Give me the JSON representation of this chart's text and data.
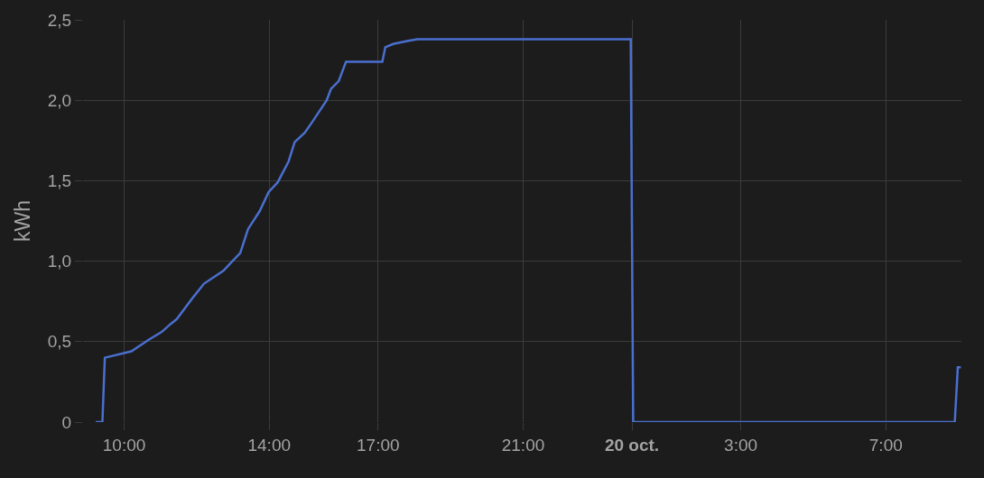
{
  "chart_data": {
    "type": "line",
    "ylabel": "kWh",
    "x": [
      "--10-19T09:13",
      "--10-19T09:24",
      "--10-19T09:28",
      "--10-19T10:12",
      "--10-19T10:40",
      "--10-19T11:02",
      "--10-19T11:17",
      "--10-19T11:27",
      "--10-19T11:55",
      "--10-19T12:12",
      "--10-19T12:44",
      "--10-19T12:59",
      "--10-19T13:12",
      "--10-19T13:25",
      "--10-19T13:44",
      "--10-19T13:59",
      "--10-19T14:14",
      "--10-19T14:32",
      "--10-19T14:42",
      "--10-19T14:59",
      "--10-19T15:12",
      "--10-19T15:35",
      "--10-19T15:42",
      "--10-19T15:55",
      "--10-19T16:07",
      "--10-19T17:07",
      "--10-19T17:12",
      "--10-19T17:25",
      "--10-19T17:50",
      "--10-19T18:05",
      "--10-19T23:58",
      "--10-20T00:02",
      "--10-20T08:54",
      "--10-20T08:59",
      "--10-20T09:04"
    ],
    "series": [
      {
        "color": "#4a6fcf",
        "values": [
          0,
          0,
          0.4,
          0.44,
          0.51,
          0.56,
          0.61,
          0.64,
          0.78,
          0.86,
          0.94,
          1.0,
          1.05,
          1.2,
          1.31,
          1.43,
          1.49,
          1.62,
          1.74,
          1.8,
          1.87,
          2.0,
          2.07,
          2.12,
          2.24,
          2.24,
          2.33,
          2.35,
          2.37,
          2.38,
          2.38,
          0,
          0,
          0.34,
          0.34
        ]
      }
    ],
    "xlim": [
      "--10-19T08:52",
      "--10-20T09:05"
    ],
    "xticks": [
      {
        "value": "--10-19T10:00",
        "label": "10:00"
      },
      {
        "value": "--10-19T14:00",
        "label": "14:00"
      },
      {
        "value": "--10-19T17:00",
        "label": "17:00"
      },
      {
        "value": "--10-19T21:00",
        "label": "21:00"
      },
      {
        "value": "--10-20T00:00",
        "label": "20 oct."
      },
      {
        "value": "--10-20T03:00",
        "label": "3:00"
      },
      {
        "value": "--10-20T07:00",
        "label": "7:00"
      }
    ],
    "ylim": [
      0,
      2.5
    ],
    "yticks": [
      {
        "value": 0,
        "label": "0"
      },
      {
        "value": 0.5,
        "label": "0,5"
      },
      {
        "value": 1,
        "label": "1,0"
      },
      {
        "value": 1.5,
        "label": "1,5"
      },
      {
        "value": 2,
        "label": "2,0"
      },
      {
        "value": 2.5,
        "label": "2,5"
      }
    ],
    "grid": true,
    "marker": "none",
    "line_style": "solid"
  }
}
